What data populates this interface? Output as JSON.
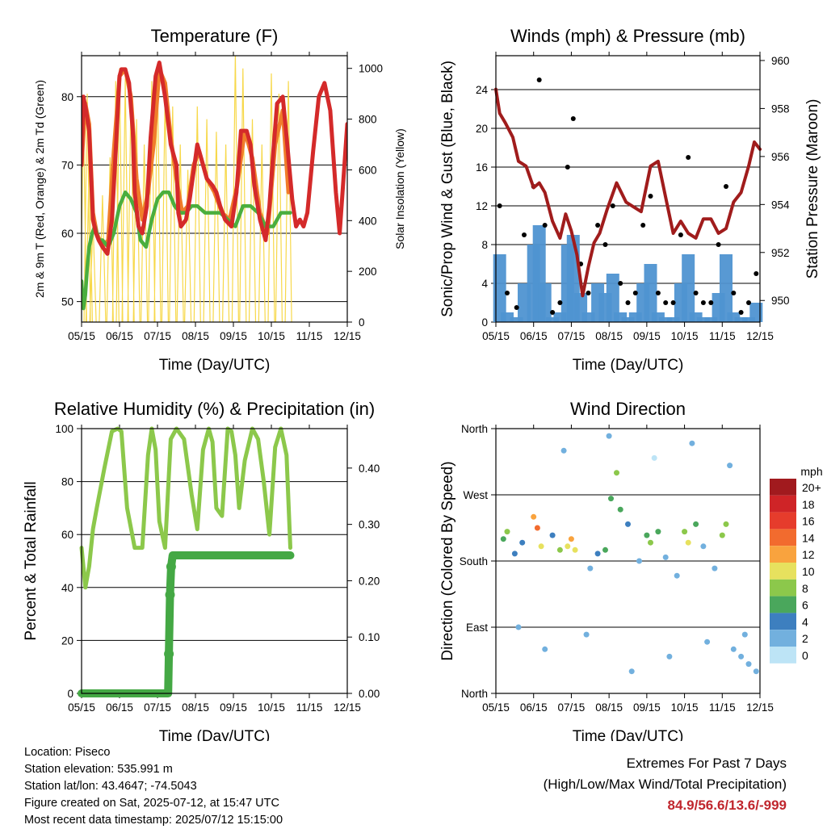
{
  "chart_data": [
    {
      "type": "line",
      "title": "Temperature (F)",
      "xlabel": "Time (Day/UTC)",
      "ylabel": "2m & 9m T (Red, Orange) & 2m Td (Green)",
      "y2label": "Solar Insolation (Yellow)",
      "ylim": [
        47,
        86
      ],
      "y2lim": [
        0,
        1050
      ],
      "yticks": [
        50,
        60,
        70,
        80
      ],
      "y2ticks": [
        0,
        200,
        400,
        600,
        800,
        1000
      ],
      "xticks": [
        "05/15",
        "06/15",
        "07/15",
        "08/15",
        "09/15",
        "10/15",
        "11/15",
        "12/15"
      ],
      "grid": true,
      "series": [
        {
          "name": "2m T",
          "color": "#d42a2a",
          "x": [
            0.0,
            0.05,
            0.12,
            0.2,
            0.3,
            0.38,
            0.45,
            0.55,
            0.68,
            0.8,
            0.9,
            1.0,
            1.05,
            1.15,
            1.25,
            1.35,
            1.4,
            1.5,
            1.6,
            1.72,
            1.82,
            1.95,
            2.05,
            2.2,
            2.35,
            2.5,
            2.55,
            2.62,
            2.75,
            2.85,
            2.95,
            3.05,
            3.15,
            3.3,
            3.45,
            3.55,
            3.65,
            3.78,
            3.95,
            4.08,
            4.2,
            4.35,
            4.45,
            4.55,
            4.7,
            4.85,
            4.95,
            5.05,
            5.15,
            5.3,
            5.42,
            5.55,
            5.65,
            5.75,
            5.85,
            5.95,
            6.1,
            6.25,
            6.4,
            6.55,
            6.7,
            6.8,
            6.9,
            7.0
          ],
          "y": [
            70,
            80,
            78,
            75,
            62,
            60,
            59,
            58,
            57,
            62,
            72,
            83,
            84,
            84,
            82,
            75,
            66,
            61,
            60,
            64,
            74,
            83,
            85,
            80,
            73,
            70,
            63,
            61,
            62,
            65,
            69,
            73,
            71,
            68,
            67,
            66,
            64,
            62,
            61,
            66,
            75,
            75,
            73,
            67,
            62,
            59,
            64,
            72,
            79,
            80,
            73,
            65,
            61,
            62,
            61,
            63,
            72,
            80,
            82,
            78,
            66,
            60,
            68,
            76
          ]
        },
        {
          "name": "9m T",
          "color": "#f07d2a",
          "x": [
            0.0,
            0.1,
            0.2,
            0.3,
            0.4,
            0.55,
            0.7,
            0.85,
            1.0,
            1.15,
            1.3,
            1.45,
            1.6,
            1.75,
            1.9,
            2.05,
            2.2,
            2.35,
            2.5,
            2.65,
            2.8,
            2.95,
            3.1,
            3.3,
            3.5,
            3.7,
            3.9,
            4.1,
            4.3,
            4.5,
            4.7,
            4.9,
            5.1,
            5.3,
            5.45
          ],
          "y": [
            70,
            79,
            76,
            63,
            60,
            58,
            59,
            72,
            83,
            84,
            80,
            68,
            62,
            66,
            73,
            84,
            82,
            74,
            68,
            63,
            64,
            70,
            72,
            68,
            66,
            63,
            62,
            67,
            75,
            71,
            63,
            60,
            73,
            78,
            66
          ]
        },
        {
          "name": "2m Td",
          "color": "#4aae3e",
          "x": [
            0.0,
            0.05,
            0.1,
            0.15,
            0.2,
            0.28,
            0.35,
            0.45,
            0.55,
            0.7,
            0.85,
            1.0,
            1.15,
            1.3,
            1.45,
            1.55,
            1.7,
            1.85,
            2.0,
            2.15,
            2.3,
            2.45,
            2.6,
            2.75,
            2.9,
            3.05,
            3.25,
            3.45,
            3.65,
            3.85,
            4.05,
            4.25,
            4.45,
            4.65,
            4.85,
            5.05,
            5.25,
            5.4,
            5.5
          ],
          "y": [
            53,
            49,
            51,
            55,
            58,
            60,
            61,
            59,
            59,
            58,
            60,
            64,
            66,
            65,
            63,
            59,
            58,
            62,
            65,
            66,
            66,
            64,
            63,
            63,
            64,
            64,
            63,
            63,
            63,
            62,
            61,
            64,
            64,
            63,
            61,
            61,
            63,
            63,
            63
          ]
        },
        {
          "name": "Solar",
          "color": "#f7d84a",
          "axis": "y2",
          "x": [
            0.05,
            0.15,
            0.2,
            0.3,
            0.55,
            0.75,
            0.9,
            1.0,
            1.15,
            1.3,
            1.45,
            1.65,
            1.85,
            2.0,
            2.2,
            2.4,
            2.6,
            2.8,
            3.05,
            3.3,
            3.55,
            3.8,
            4.05,
            4.25,
            4.5,
            4.75,
            5.0,
            5.2,
            5.45
          ],
          "y": [
            820,
            900,
            650,
            400,
            500,
            650,
            950,
            1000,
            960,
            900,
            800,
            700,
            950,
            1000,
            900,
            850,
            700,
            600,
            850,
            800,
            750,
            700,
            1060,
            1000,
            800,
            700,
            980,
            900,
            950
          ]
        }
      ]
    },
    {
      "type": "scatter",
      "title": "Winds (mph) & Pressure (mb)",
      "xlabel": "Time (Day/UTC)",
      "ylabel": "Sonic/Prop Wind & Gust (Blue, Black)",
      "y2label": "Station Pressure (Maroon)",
      "ylim": [
        0,
        27.5
      ],
      "y2lim": [
        949.1,
        960.2
      ],
      "yticks": [
        0,
        4,
        8,
        12,
        16,
        20,
        24
      ],
      "y2ticks": [
        950,
        952,
        954,
        956,
        958,
        960
      ],
      "xticks": [
        "05/15",
        "06/15",
        "07/15",
        "08/15",
        "09/15",
        "10/15",
        "11/15",
        "12/15"
      ],
      "grid": true,
      "series": [
        {
          "name": "Pressure",
          "color": "#a01c1c",
          "axis": "y2",
          "x": [
            0.0,
            0.1,
            0.25,
            0.45,
            0.6,
            0.8,
            1.0,
            1.15,
            1.3,
            1.5,
            1.7,
            1.85,
            2.0,
            2.15,
            2.3,
            2.45,
            2.6,
            2.75,
            2.95,
            3.2,
            3.45,
            3.65,
            3.85,
            4.1,
            4.3,
            4.5,
            4.7,
            4.9,
            5.1,
            5.3,
            5.5,
            5.7,
            5.9,
            6.1,
            6.3,
            6.5,
            6.7,
            6.85,
            7.0
          ],
          "y": [
            958.8,
            957.8,
            957.4,
            956.8,
            955.8,
            955.6,
            954.7,
            954.9,
            954.5,
            953.3,
            952.6,
            953.6,
            952.9,
            951.9,
            950.2,
            951.4,
            952.4,
            952.8,
            953.8,
            954.9,
            954.1,
            953.9,
            953.7,
            955.6,
            955.8,
            954.3,
            952.8,
            953.3,
            952.8,
            952.6,
            953.4,
            953.4,
            952.8,
            953.0,
            954.1,
            954.5,
            955.6,
            956.6,
            956.3
          ]
        },
        {
          "name": "Gust",
          "color": "#000000",
          "x": [
            0.1,
            0.3,
            0.55,
            0.75,
            1.0,
            1.15,
            1.3,
            1.5,
            1.7,
            1.9,
            2.05,
            2.25,
            2.45,
            2.7,
            2.9,
            3.1,
            3.3,
            3.5,
            3.7,
            3.9,
            4.1,
            4.3,
            4.5,
            4.7,
            4.9,
            5.1,
            5.3,
            5.5,
            5.7,
            5.9,
            6.1,
            6.3,
            6.5,
            6.7,
            6.9
          ],
          "y": [
            12,
            3,
            1.5,
            9,
            14,
            25,
            10,
            1,
            2,
            16,
            21,
            6,
            3,
            10,
            8,
            12,
            4,
            2,
            3,
            10,
            13,
            3,
            2,
            2,
            9,
            17,
            3,
            2,
            2,
            8,
            14,
            3,
            1,
            2,
            5
          ]
        },
        {
          "name": "Wind",
          "color": "#4f93d1",
          "x": [
            0.1,
            0.3,
            0.55,
            0.75,
            1.0,
            1.15,
            1.3,
            1.5,
            1.7,
            1.9,
            2.05,
            2.25,
            2.45,
            2.7,
            2.9,
            3.1,
            3.3,
            3.5,
            3.7,
            3.9,
            4.1,
            4.3,
            4.5,
            4.7,
            4.9,
            5.1,
            5.3,
            5.5,
            5.7,
            5.9,
            6.1,
            6.3,
            6.5,
            6.7,
            6.9
          ],
          "y": [
            7,
            1,
            0.5,
            4,
            8,
            10,
            4,
            0.5,
            1,
            8,
            9,
            3,
            1,
            4,
            3,
            5,
            1,
            0.5,
            1,
            4,
            6,
            1,
            0.5,
            0.5,
            4,
            7,
            1,
            0.5,
            0.5,
            3,
            7,
            1,
            0.5,
            0.5,
            2
          ]
        }
      ]
    },
    {
      "type": "scatter",
      "title": "Relative Humidity (%) & Precipitation (in)",
      "xlabel": "Time (Day/UTC)",
      "ylabel": "Percent & Total Rainfall",
      "ylim": [
        0,
        100
      ],
      "y2lim": [
        0,
        0.47
      ],
      "yticks": [
        0,
        20,
        40,
        60,
        80,
        100
      ],
      "y2ticks": [
        0.0,
        0.1,
        0.2,
        0.3,
        0.4
      ],
      "xticks": [
        "05/15",
        "06/15",
        "07/15",
        "08/15",
        "09/15",
        "10/15",
        "11/15",
        "12/15"
      ],
      "grid": true,
      "series": [
        {
          "name": "RH",
          "color": "#8cc84b",
          "x": [
            0.0,
            0.1,
            0.2,
            0.3,
            0.4,
            0.6,
            0.8,
            0.95,
            1.05,
            1.2,
            1.4,
            1.6,
            1.75,
            1.85,
            1.95,
            2.05,
            2.2,
            2.35,
            2.5,
            2.7,
            2.9,
            3.05,
            3.2,
            3.35,
            3.45,
            3.55,
            3.7,
            3.85,
            3.95,
            4.05,
            4.15,
            4.3,
            4.5,
            4.65,
            4.8,
            4.95,
            5.1,
            5.25,
            5.4,
            5.5
          ],
          "y": [
            55,
            40,
            48,
            62,
            70,
            85,
            99,
            100,
            99,
            70,
            55,
            55,
            90,
            100,
            92,
            65,
            55,
            96,
            100,
            96,
            75,
            62,
            92,
            100,
            95,
            70,
            67,
            100,
            99,
            90,
            70,
            88,
            100,
            96,
            80,
            60,
            93,
            100,
            90,
            55
          ]
        },
        {
          "name": "Precip",
          "color": "#44a844",
          "axis": "y2",
          "x": [
            0.0,
            0.5,
            1.0,
            1.5,
            2.0,
            2.15,
            2.28,
            2.3,
            2.33,
            2.36,
            2.4,
            2.6,
            3.0,
            3.5,
            4.0,
            4.5,
            5.0,
            5.5
          ],
          "y": [
            0.0,
            0.0,
            0.0,
            0.0,
            0.0,
            0.0,
            0.0,
            0.07,
            0.175,
            0.225,
            0.245,
            0.245,
            0.245,
            0.245,
            0.245,
            0.245,
            0.245,
            0.245
          ]
        }
      ]
    },
    {
      "type": "scatter",
      "title": "Wind Direction",
      "xlabel": "Time (Day/UTC)",
      "ylabel": "Direction (Colored By Speed)",
      "ylim": [
        0,
        360
      ],
      "yticks": [
        "North",
        "East",
        "South",
        "West",
        "North"
      ],
      "xticks": [
        "05/15",
        "06/15",
        "07/15",
        "08/15",
        "09/15",
        "10/15",
        "11/15",
        "12/15"
      ],
      "grid": true,
      "legend": {
        "title": "mph",
        "labels": [
          "20+",
          "18",
          "16",
          "14",
          "12",
          "10",
          "8",
          "6",
          "4",
          "2",
          "0"
        ],
        "colors": [
          "#a11a1e",
          "#cf2427",
          "#e63c2c",
          "#f26b2e",
          "#f9a33e",
          "#e7e15e",
          "#8cc84b",
          "#4aa75c",
          "#3d7fbf",
          "#72b0de",
          "#bde4f6"
        ],
        "placement": "right"
      },
      "series": [
        {
          "name": "Direction",
          "x": [
            0.2,
            0.3,
            0.5,
            0.7,
            1.0,
            1.1,
            1.2,
            1.5,
            1.7,
            1.9,
            2.0,
            2.1,
            2.5,
            2.7,
            2.9,
            3.05,
            3.2,
            3.3,
            3.5,
            3.8,
            4.0,
            4.1,
            4.3,
            4.5,
            4.8,
            5.0,
            5.1,
            5.3,
            5.5,
            5.8,
            6.0,
            6.1,
            6.3,
            6.5,
            6.7,
            6.9,
            0.6,
            1.3,
            2.4,
            3.6,
            4.6,
            5.6,
            6.6,
            1.8,
            3.0,
            4.2,
            5.2,
            6.2
          ],
          "y": [
            210,
            220,
            190,
            205,
            240,
            225,
            200,
            215,
            195,
            200,
            210,
            195,
            170,
            190,
            195,
            265,
            300,
            250,
            230,
            180,
            215,
            205,
            220,
            185,
            160,
            220,
            205,
            230,
            200,
            170,
            215,
            230,
            60,
            50,
            40,
            30,
            90,
            60,
            80,
            30,
            50,
            70,
            80,
            330,
            350,
            320,
            340,
            310
          ],
          "s": [
            6,
            7,
            3,
            4,
            12,
            14,
            10,
            4,
            8,
            10,
            12,
            9,
            2,
            3,
            5,
            6,
            7,
            5,
            3,
            1,
            6,
            7,
            5,
            2,
            1,
            7,
            9,
            5,
            2,
            1,
            7,
            8,
            1,
            2,
            1,
            2,
            1,
            2,
            1,
            1,
            1,
            2,
            1,
            1,
            1,
            0,
            1,
            1
          ]
        }
      ]
    }
  ],
  "footer": {
    "location": "Location: Piseco",
    "elevation": "Station elevation: 535.991 m",
    "latlon": "Station lat/lon: 43.4647; -74.5043",
    "created": "Figure created on Sat, 2025-07-12, at 15:47 UTC",
    "recent": "Most recent data timestamp: 2025/07/12 15:15:00"
  },
  "extremes": {
    "title": "Extremes For Past 7 Days",
    "subtitle": "(High/Low/Max Wind/Total Precipitation)",
    "values": "84.9/56.6/13.6/-999"
  }
}
